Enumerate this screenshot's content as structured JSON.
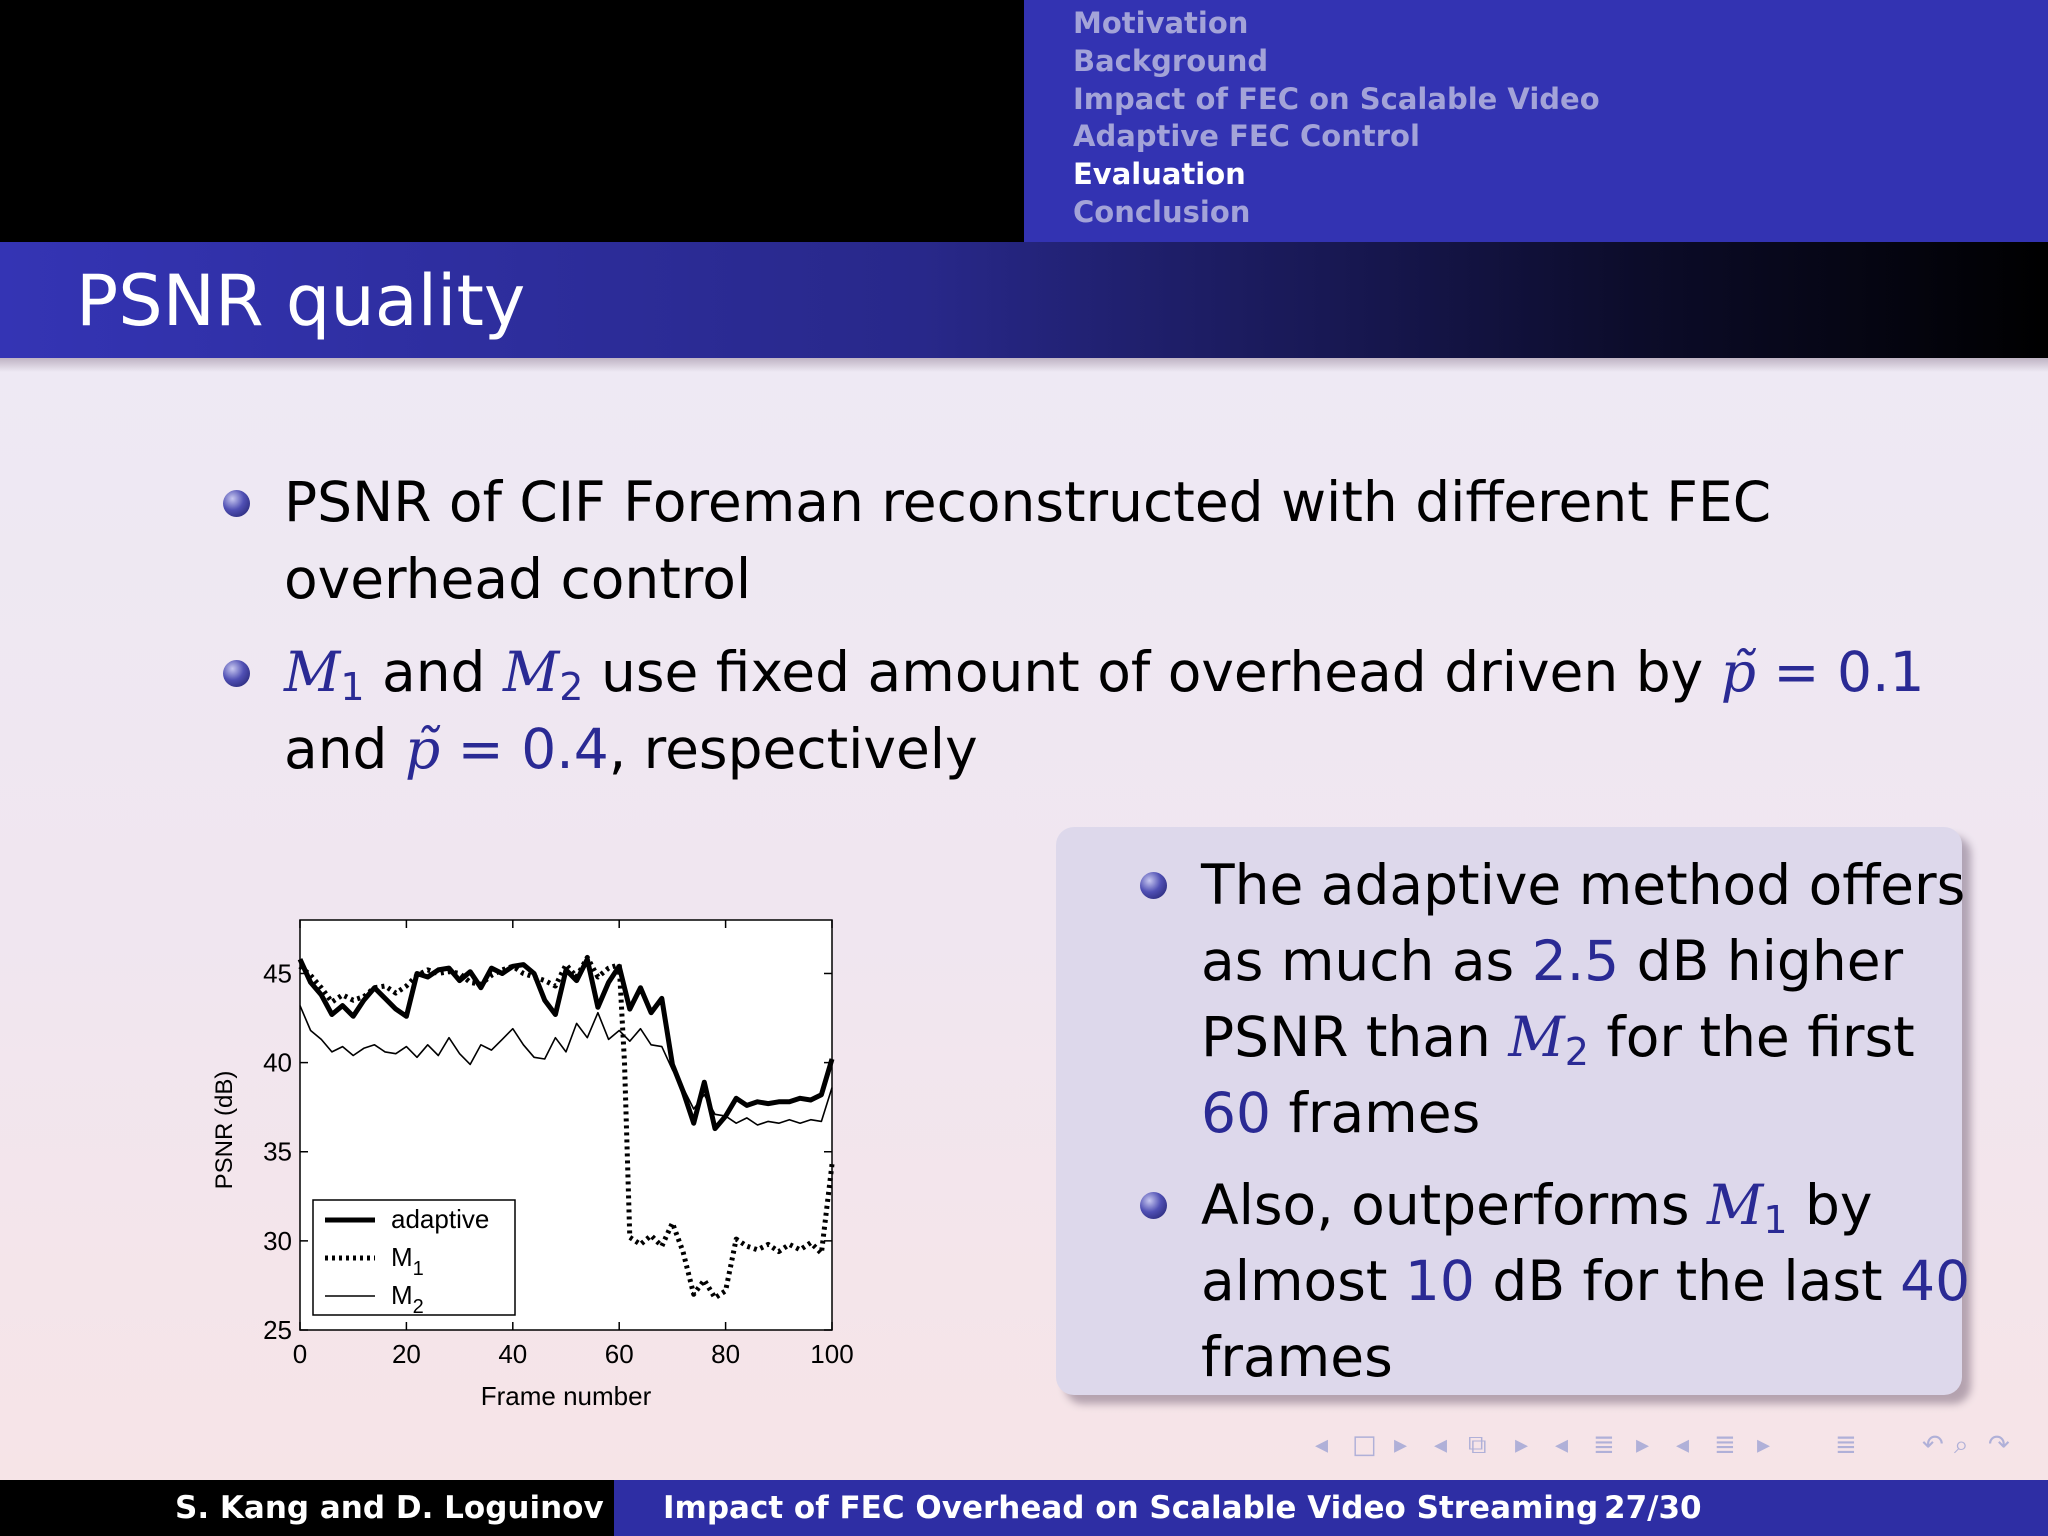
{
  "header": {
    "nav_sections": [
      {
        "label": "Motivation",
        "active": false
      },
      {
        "label": "Background",
        "active": false
      },
      {
        "label": "Impact of FEC on Scalable Video",
        "active": false
      },
      {
        "label": "Adaptive FEC Control",
        "active": false
      },
      {
        "label": "Evaluation",
        "active": true
      },
      {
        "label": "Conclusion",
        "active": false
      }
    ]
  },
  "slide": {
    "title": "PSNR quality",
    "bullets": [
      {
        "line1": "PSNR of CIF Foreman reconstructed with different FEC",
        "line2": "overhead control"
      },
      {
        "m1": "M",
        "m1_sub": "1",
        "and_word": "and",
        "m2": "M",
        "m2_sub": "2",
        "rest1": "use fixed amount of overhead driven by",
        "p_symbol": "p̃",
        "eq": "=",
        "p_val1": "0.1",
        "line2_start": "and",
        "p_val2": "0.4",
        "line2_end": ", respectively"
      }
    ],
    "box_bullets": [
      {
        "l1": "The adaptive method offers",
        "l2_start": "as much as",
        "l2_val": "2.5",
        "l2_end": "dB higher",
        "l3_start": "PSNR than",
        "l3_math": "M",
        "l3_sub": "2",
        "l3_end": "for the first",
        "l4_val": "60",
        "l4_end": "frames"
      },
      {
        "l1_start": "Also, outperforms",
        "l1_math": "M",
        "l1_sub": "1",
        "l1_end": "by",
        "l2_start": "almost",
        "l2_val1": "10",
        "l2_mid": "dB for the last",
        "l2_val2": "40",
        "l3": "frames"
      }
    ]
  },
  "chart_data": {
    "type": "line",
    "xlabel": "Frame number",
    "ylabel": "PSNR (dB)",
    "xlim": [
      0,
      100
    ],
    "ylim": [
      25,
      48
    ],
    "xticks": [
      0,
      20,
      40,
      60,
      80,
      100
    ],
    "yticks": [
      25,
      30,
      35,
      40,
      45
    ],
    "legend_position": "bottom-left",
    "series": [
      {
        "name": "adaptive",
        "style": "thick-solid",
        "x": [
          0,
          2,
          4,
          6,
          8,
          10,
          12,
          14,
          16,
          18,
          20,
          22,
          24,
          26,
          28,
          30,
          32,
          34,
          36,
          38,
          40,
          42,
          44,
          46,
          48,
          50,
          52,
          54,
          56,
          58,
          60,
          62,
          64,
          66,
          68,
          70,
          72,
          74,
          76,
          78,
          80,
          82,
          84,
          86,
          88,
          90,
          92,
          94,
          96,
          98,
          100
        ],
        "y": [
          45.8,
          44.5,
          43.8,
          42.7,
          43.2,
          42.6,
          43.5,
          44.2,
          43.6,
          43.0,
          42.6,
          45.0,
          44.8,
          45.2,
          45.3,
          44.6,
          45.1,
          44.2,
          45.3,
          45.0,
          45.4,
          45.5,
          45.0,
          43.5,
          42.7,
          45.2,
          44.6,
          45.8,
          43.1,
          44.5,
          45.4,
          43.0,
          44.2,
          42.8,
          43.6,
          39.9,
          38.4,
          36.6,
          38.9,
          36.3,
          37.0,
          38.0,
          37.6,
          37.8,
          37.7,
          37.8,
          37.8,
          38.0,
          37.9,
          38.2,
          40.2
        ]
      },
      {
        "name": "M1",
        "sub": "1",
        "style": "thick-dotted",
        "x": [
          0,
          2,
          4,
          6,
          8,
          10,
          12,
          14,
          16,
          18,
          20,
          22,
          24,
          26,
          28,
          30,
          32,
          34,
          36,
          38,
          40,
          42,
          44,
          46,
          48,
          50,
          52,
          54,
          56,
          58,
          60,
          61,
          62,
          64,
          66,
          68,
          70,
          72,
          74,
          76,
          78,
          80,
          82,
          84,
          86,
          88,
          90,
          92,
          94,
          96,
          98,
          100
        ],
        "y": [
          45.4,
          44.9,
          44.2,
          43.4,
          43.8,
          43.5,
          43.7,
          44.2,
          44.3,
          43.9,
          44.3,
          44.9,
          45.2,
          45.0,
          45.1,
          45.0,
          44.5,
          44.4,
          44.9,
          45.2,
          45.4,
          45.0,
          44.8,
          44.6,
          44.3,
          45.5,
          44.8,
          45.9,
          44.8,
          45.3,
          45.5,
          40.0,
          30.2,
          29.8,
          30.3,
          29.7,
          31.0,
          29.4,
          27.0,
          27.8,
          26.8,
          27.2,
          30.1,
          29.7,
          29.5,
          29.8,
          29.4,
          29.8,
          29.5,
          29.9,
          29.3,
          34.3
        ]
      },
      {
        "name": "M2",
        "sub": "2",
        "style": "thin-solid",
        "x": [
          0,
          2,
          4,
          6,
          8,
          10,
          12,
          14,
          16,
          18,
          20,
          22,
          24,
          26,
          28,
          30,
          32,
          34,
          36,
          38,
          40,
          42,
          44,
          46,
          48,
          50,
          52,
          54,
          56,
          58,
          60,
          62,
          64,
          66,
          68,
          70,
          72,
          74,
          76,
          78,
          80,
          82,
          84,
          86,
          88,
          90,
          92,
          94,
          96,
          98,
          100
        ],
        "y": [
          43.2,
          41.8,
          41.3,
          40.6,
          40.9,
          40.4,
          40.8,
          41.0,
          40.6,
          40.5,
          40.9,
          40.3,
          41.0,
          40.4,
          41.4,
          40.5,
          39.9,
          41.0,
          40.7,
          41.3,
          41.9,
          41.0,
          40.3,
          40.2,
          41.4,
          40.6,
          42.2,
          41.4,
          42.8,
          41.3,
          41.8,
          41.2,
          41.9,
          41.0,
          40.9,
          39.6,
          38.6,
          37.4,
          38.2,
          37.1,
          37.0,
          36.6,
          36.9,
          36.5,
          36.7,
          36.6,
          36.8,
          36.6,
          36.8,
          36.7,
          38.6
        ]
      }
    ]
  },
  "footer": {
    "authors": "S. Kang and D. Loguinov",
    "title": "Impact of FEC Overhead on Scalable Video Streaming",
    "page": "27/30"
  },
  "nav_controls": {
    "frame_prev": "◂",
    "frame_icon": "□",
    "frame_next": "▸",
    "sub_prev": "◂",
    "sub_icon": "⧉",
    "sub_next": "▸",
    "sec_prev": "◂",
    "sec_icon": "≣",
    "sec_next": "▸",
    "subsec_prev": "◂",
    "subsec_icon": "≣",
    "subsec_next": "▸",
    "toc_icon": "≣",
    "undo_icon": "↶",
    "find_icon": "⌕",
    "redo_icon": "↷"
  }
}
